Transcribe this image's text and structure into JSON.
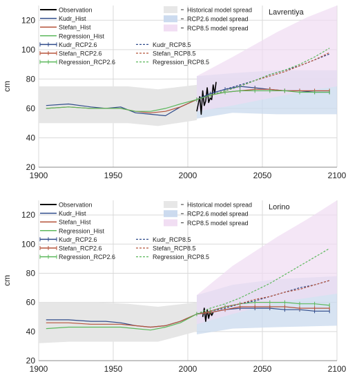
{
  "chart_data": [
    {
      "type": "line",
      "station": "Lavrentiya",
      "ylabel": "cm",
      "xlim": [
        1900,
        2100
      ],
      "ylim": [
        20,
        130
      ],
      "xticks": [
        1900,
        1950,
        2000,
        2050,
        2100
      ],
      "yticks": [
        20,
        40,
        60,
        80,
        100,
        120
      ],
      "grid": true,
      "legend_left": [
        "Observation",
        "Kudr_Hist",
        "Stefan_Hist",
        "Regression_Hist",
        "Kudr_RCP2.6",
        "Stefan_RCP2.6",
        "Regression_RCP2.6"
      ],
      "legend_mid": [
        "Kudr_RCP8.5",
        "Stefan_RCP8.5",
        "Regression_RCP8.5"
      ],
      "legend_bands": [
        "Historical model spread",
        "RCP2.6 model spread",
        "RCP8.5 model spread"
      ],
      "colors": {
        "observation": "#000000",
        "kudr": "#2e4a8a",
        "stefan": "#b5533a",
        "regression": "#5cb85c",
        "hist_band": "#e6e6e6",
        "rcp26_band": "#c9d9ee",
        "rcp85_band": "#f0dcf2",
        "overlap_band": "#cfcde8"
      },
      "series": [
        {
          "name": "Observation",
          "style": "solid",
          "x": [
            2006,
            2008,
            2009,
            2010,
            2011,
            2012,
            2013,
            2014,
            2015,
            2016,
            2017,
            2018,
            2019
          ],
          "values": [
            58,
            68,
            56,
            72,
            62,
            65,
            74,
            64,
            67,
            66,
            76,
            70,
            78
          ]
        },
        {
          "name": "Kudr_Hist",
          "style": "solid",
          "x": [
            1905,
            1920,
            1935,
            1945,
            1955,
            1965,
            1975,
            1985,
            1995,
            2006
          ],
          "values": [
            62,
            63,
            61,
            60,
            61,
            57,
            56,
            55,
            61,
            66
          ]
        },
        {
          "name": "Stefan_Hist",
          "style": "solid",
          "x": [
            1905,
            1920,
            1935,
            1945,
            1955,
            1965,
            1975,
            1985,
            1995,
            2006
          ],
          "values": [
            60,
            61,
            60,
            60,
            60,
            58,
            57,
            58,
            61,
            66
          ]
        },
        {
          "name": "Regression_Hist",
          "style": "solid",
          "x": [
            1905,
            1920,
            1935,
            1945,
            1955,
            1965,
            1975,
            1985,
            1995,
            2006
          ],
          "values": [
            60,
            61,
            60,
            60,
            60,
            58,
            58,
            60,
            63,
            66
          ]
        },
        {
          "name": "Kudr_RCP2.6",
          "style": "markers",
          "x": [
            2006,
            2015,
            2025,
            2035,
            2045,
            2055,
            2065,
            2075,
            2085,
            2095
          ],
          "values": [
            66,
            70,
            73,
            75,
            74,
            73,
            72,
            72,
            71,
            71
          ]
        },
        {
          "name": "Stefan_RCP2.6",
          "style": "markers",
          "x": [
            2006,
            2015,
            2025,
            2035,
            2045,
            2055,
            2065,
            2075,
            2085,
            2095
          ],
          "values": [
            66,
            69,
            71,
            72,
            73,
            73,
            72,
            72,
            72,
            72
          ]
        },
        {
          "name": "Regression_RCP2.6",
          "style": "markers",
          "x": [
            2006,
            2015,
            2025,
            2035,
            2045,
            2055,
            2065,
            2075,
            2085,
            2095
          ],
          "values": [
            66,
            69,
            71,
            72,
            72,
            72,
            72,
            71,
            71,
            71
          ]
        },
        {
          "name": "Kudr_RCP8.5",
          "style": "dashed",
          "x": [
            2006,
            2015,
            2025,
            2035,
            2045,
            2055,
            2065,
            2075,
            2085,
            2095
          ],
          "values": [
            66,
            70,
            73,
            76,
            79,
            83,
            86,
            89,
            93,
            97
          ]
        },
        {
          "name": "Stefan_RCP8.5",
          "style": "dashed",
          "x": [
            2006,
            2015,
            2025,
            2035,
            2045,
            2055,
            2065,
            2075,
            2085,
            2095
          ],
          "values": [
            66,
            69,
            72,
            75,
            79,
            82,
            85,
            89,
            93,
            98
          ]
        },
        {
          "name": "Regression_RCP8.5",
          "style": "dashed",
          "x": [
            2006,
            2015,
            2025,
            2035,
            2045,
            2055,
            2065,
            2075,
            2085,
            2095
          ],
          "values": [
            66,
            69,
            72,
            75,
            79,
            83,
            86,
            90,
            95,
            101
          ]
        }
      ],
      "bands": [
        {
          "name": "Historical model spread",
          "x": [
            1900,
            1920,
            1940,
            1960,
            1980,
            2006
          ],
          "lower": [
            50,
            50,
            50,
            50,
            48,
            52
          ],
          "upper": [
            75,
            75,
            75,
            75,
            73,
            76
          ]
        },
        {
          "name": "RCP2.6 model spread",
          "x": [
            2006,
            2030,
            2060,
            2100
          ],
          "lower": [
            53,
            57,
            56,
            56
          ],
          "upper": [
            82,
            84,
            86,
            86
          ]
        },
        {
          "name": "RCP8.5 model spread",
          "x": [
            2006,
            2030,
            2060,
            2080,
            2100
          ],
          "lower": [
            58,
            62,
            68,
            72,
            75
          ],
          "upper": [
            82,
            95,
            112,
            122,
            130
          ]
        }
      ]
    },
    {
      "type": "line",
      "station": "Lorino",
      "ylabel": "cm",
      "xlim": [
        1900,
        2100
      ],
      "ylim": [
        20,
        130
      ],
      "xticks": [
        1900,
        1950,
        2000,
        2050,
        2100
      ],
      "yticks": [
        20,
        40,
        60,
        80,
        100,
        120
      ],
      "grid": true,
      "legend_left": [
        "Observation",
        "Kudr_Hist",
        "Stefan_Hist",
        "Regression_Hist",
        "Kudr_RCP2.6",
        "Stefan_RCP2.6",
        "Regression_RCP2.6"
      ],
      "legend_mid": [
        "Kudr_RCP8.5",
        "Stefan_RCP8.5",
        "Regression_RCP8.5"
      ],
      "legend_bands": [
        "Historical model spread",
        "RCP2.6 model spread",
        "RCP8.5 model spread"
      ],
      "colors": {
        "observation": "#000000",
        "kudr": "#2e4a8a",
        "stefan": "#b5533a",
        "regression": "#5cb85c",
        "hist_band": "#e6e6e6",
        "rcp26_band": "#c9d9ee",
        "rcp85_band": "#f0dcf2",
        "overlap_band": "#cfcde8"
      },
      "series": [
        {
          "name": "Observation",
          "style": "solid",
          "x": [
            2010,
            2011,
            2012,
            2013,
            2014,
            2015,
            2016,
            2017
          ],
          "values": [
            50,
            56,
            47,
            55,
            49,
            54,
            51,
            53
          ]
        },
        {
          "name": "Kudr_Hist",
          "style": "solid",
          "x": [
            1905,
            1920,
            1935,
            1945,
            1955,
            1965,
            1975,
            1985,
            1995,
            2006
          ],
          "values": [
            48,
            48,
            47,
            47,
            46,
            44,
            43,
            44,
            47,
            52
          ]
        },
        {
          "name": "Stefan_Hist",
          "style": "solid",
          "x": [
            1905,
            1920,
            1935,
            1945,
            1955,
            1965,
            1975,
            1985,
            1995,
            2006
          ],
          "values": [
            46,
            46,
            45,
            45,
            45,
            44,
            43,
            44,
            47,
            52
          ]
        },
        {
          "name": "Regression_Hist",
          "style": "solid",
          "x": [
            1905,
            1920,
            1935,
            1945,
            1955,
            1965,
            1975,
            1985,
            1995,
            2006
          ],
          "values": [
            42,
            43,
            43,
            43,
            43,
            42,
            41,
            43,
            46,
            52
          ]
        },
        {
          "name": "Kudr_RCP2.6",
          "style": "markers",
          "x": [
            2006,
            2015,
            2025,
            2035,
            2045,
            2055,
            2065,
            2075,
            2085,
            2095
          ],
          "values": [
            52,
            53,
            55,
            56,
            56,
            56,
            55,
            55,
            54,
            54
          ]
        },
        {
          "name": "Stefan_RCP2.6",
          "style": "markers",
          "x": [
            2006,
            2015,
            2025,
            2035,
            2045,
            2055,
            2065,
            2075,
            2085,
            2095
          ],
          "values": [
            52,
            53,
            55,
            57,
            57,
            57,
            57,
            56,
            56,
            56
          ]
        },
        {
          "name": "Regression_RCP2.6",
          "style": "markers",
          "x": [
            2006,
            2015,
            2025,
            2035,
            2045,
            2055,
            2065,
            2075,
            2085,
            2095
          ],
          "values": [
            52,
            54,
            57,
            59,
            60,
            60,
            60,
            59,
            59,
            58
          ]
        },
        {
          "name": "Kudr_RCP8.5",
          "style": "dashed",
          "x": [
            2006,
            2015,
            2025,
            2035,
            2045,
            2055,
            2065,
            2075,
            2085,
            2095
          ],
          "values": [
            52,
            54,
            56,
            59,
            61,
            64,
            67,
            70,
            72,
            75
          ]
        },
        {
          "name": "Stefan_RCP8.5",
          "style": "dashed",
          "x": [
            2006,
            2015,
            2025,
            2035,
            2045,
            2055,
            2065,
            2075,
            2085,
            2095
          ],
          "values": [
            52,
            54,
            57,
            59,
            62,
            64,
            67,
            69,
            72,
            75
          ]
        },
        {
          "name": "Regression_RCP8.5",
          "style": "dashed",
          "x": [
            2006,
            2015,
            2025,
            2035,
            2045,
            2055,
            2065,
            2075,
            2085,
            2095
          ],
          "values": [
            52,
            56,
            59,
            63,
            68,
            73,
            79,
            85,
            91,
            97
          ]
        }
      ],
      "bands": [
        {
          "name": "Historical model spread",
          "x": [
            1900,
            1920,
            1940,
            1960,
            1980,
            2006
          ],
          "lower": [
            32,
            33,
            33,
            33,
            33,
            40
          ],
          "upper": [
            60,
            60,
            60,
            59,
            57,
            60
          ]
        },
        {
          "name": "RCP2.6 model spread",
          "x": [
            2006,
            2030,
            2060,
            2100
          ],
          "lower": [
            38,
            42,
            43,
            44
          ],
          "upper": [
            65,
            72,
            76,
            78
          ]
        },
        {
          "name": "RCP8.5 model spread",
          "x": [
            2006,
            2030,
            2060,
            2080,
            2100
          ],
          "lower": [
            45,
            52,
            60,
            63,
            66
          ],
          "upper": [
            65,
            85,
            105,
            117,
            130
          ]
        }
      ]
    }
  ]
}
